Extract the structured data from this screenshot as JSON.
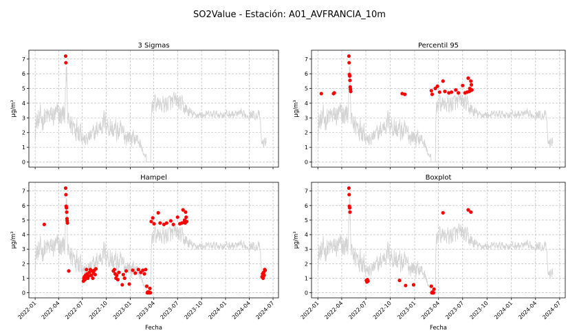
{
  "figure": {
    "suptitle": "SO2Value - Estación: A01_AVFRANCIA_10m"
  },
  "chart_data": [
    {
      "type": "line",
      "title": "3 Sigmas",
      "xlabel": "",
      "ylabel": "µg/m³",
      "ylim": [
        -0.35,
        7.6
      ],
      "yticks": [
        "0",
        "1",
        "2",
        "3",
        "4",
        "5",
        "6",
        "7"
      ],
      "xticks": [
        "2022-01",
        "2022-04",
        "2022-07",
        "2022-10",
        "2023-01",
        "2023-04",
        "2023-07",
        "2023-10",
        "2024-01",
        "2024-04",
        "2024-07"
      ],
      "show_xtick_labels": false,
      "grid": true,
      "series": [
        {
          "points": []
        }
      ],
      "outliers": [
        {
          "x": "2022-04-28",
          "y": 7.2
        },
        {
          "x": "2022-04-29",
          "y": 6.75
        }
      ]
    },
    {
      "type": "line",
      "title": "Percentil 95",
      "xlabel": "",
      "ylabel": "µg/m³",
      "ylim": [
        -0.35,
        7.6
      ],
      "yticks": [
        "0",
        "1",
        "2",
        "3",
        "4",
        "5",
        "6",
        "7"
      ],
      "xticks": [
        "2022-01",
        "2022-04",
        "2022-07",
        "2022-10",
        "2023-01",
        "2023-04",
        "2023-07",
        "2023-10",
        "2024-01",
        "2024-04",
        "2024-07"
      ],
      "show_xtick_labels": false,
      "grid": true,
      "series": [
        {
          "points": []
        }
      ],
      "outliers": [
        {
          "x": "2022-01-14",
          "y": 4.65
        },
        {
          "x": "2022-03-01",
          "y": 4.65
        },
        {
          "x": "2022-03-04",
          "y": 4.7
        },
        {
          "x": "2022-04-28",
          "y": 7.2
        },
        {
          "x": "2022-04-29",
          "y": 6.75
        },
        {
          "x": "2022-04-30",
          "y": 5.95
        },
        {
          "x": "2022-05-01",
          "y": 5.85
        },
        {
          "x": "2022-05-02",
          "y": 5.55
        },
        {
          "x": "2022-05-03",
          "y": 5.1
        },
        {
          "x": "2022-05-04",
          "y": 4.95
        },
        {
          "x": "2022-05-05",
          "y": 4.8
        },
        {
          "x": "2022-11-15",
          "y": 4.65
        },
        {
          "x": "2022-11-25",
          "y": 4.6
        },
        {
          "x": "2023-03-05",
          "y": 4.85
        },
        {
          "x": "2023-03-08",
          "y": 4.6
        },
        {
          "x": "2023-03-20",
          "y": 5.0
        },
        {
          "x": "2023-03-28",
          "y": 5.15
        },
        {
          "x": "2023-04-05",
          "y": 4.75
        },
        {
          "x": "2023-04-18",
          "y": 5.5
        },
        {
          "x": "2023-04-25",
          "y": 4.8
        },
        {
          "x": "2023-05-10",
          "y": 4.7
        },
        {
          "x": "2023-05-20",
          "y": 4.75
        },
        {
          "x": "2023-06-05",
          "y": 4.9
        },
        {
          "x": "2023-06-15",
          "y": 4.7
        },
        {
          "x": "2023-07-01",
          "y": 5.2
        },
        {
          "x": "2023-07-10",
          "y": 4.7
        },
        {
          "x": "2023-07-18",
          "y": 4.75
        },
        {
          "x": "2023-07-22",
          "y": 5.7
        },
        {
          "x": "2023-07-26",
          "y": 4.8
        },
        {
          "x": "2023-07-28",
          "y": 5.0
        },
        {
          "x": "2023-07-30",
          "y": 4.85
        },
        {
          "x": "2023-08-01",
          "y": 5.5
        },
        {
          "x": "2023-08-03",
          "y": 5.25
        },
        {
          "x": "2023-08-05",
          "y": 4.9
        }
      ]
    },
    {
      "type": "line",
      "title": "Hampel",
      "xlabel": "Fecha",
      "ylabel": "µg/m³",
      "ylim": [
        -0.35,
        7.6
      ],
      "yticks": [
        "0",
        "1",
        "2",
        "3",
        "4",
        "5",
        "6",
        "7"
      ],
      "xticks": [
        "2022-01",
        "2022-04",
        "2022-07",
        "2022-10",
        "2023-01",
        "2023-04",
        "2023-07",
        "2023-10",
        "2024-01",
        "2024-04",
        "2024-07"
      ],
      "show_xtick_labels": true,
      "grid": true,
      "series": [
        {
          "points": []
        }
      ],
      "outliers": [
        {
          "x": "2022-02-05",
          "y": 4.7
        },
        {
          "x": "2022-04-28",
          "y": 7.2
        },
        {
          "x": "2022-04-29",
          "y": 6.75
        },
        {
          "x": "2022-04-30",
          "y": 5.95
        },
        {
          "x": "2022-05-01",
          "y": 5.85
        },
        {
          "x": "2022-05-02",
          "y": 5.55
        },
        {
          "x": "2022-05-03",
          "y": 5.1
        },
        {
          "x": "2022-05-04",
          "y": 4.95
        },
        {
          "x": "2022-05-05",
          "y": 4.8
        },
        {
          "x": "2022-05-10",
          "y": 1.5
        },
        {
          "x": "2022-07-05",
          "y": 0.8
        },
        {
          "x": "2022-07-07",
          "y": 1.0
        },
        {
          "x": "2022-07-09",
          "y": 1.1
        },
        {
          "x": "2022-07-11",
          "y": 0.9
        },
        {
          "x": "2022-07-13",
          "y": 1.2
        },
        {
          "x": "2022-07-15",
          "y": 1.05
        },
        {
          "x": "2022-07-17",
          "y": 1.6
        },
        {
          "x": "2022-07-19",
          "y": 1.3
        },
        {
          "x": "2022-07-22",
          "y": 1.0
        },
        {
          "x": "2022-07-25",
          "y": 1.15
        },
        {
          "x": "2022-07-28",
          "y": 1.4
        },
        {
          "x": "2022-08-01",
          "y": 1.6
        },
        {
          "x": "2022-08-04",
          "y": 1.2
        },
        {
          "x": "2022-08-07",
          "y": 1.5
        },
        {
          "x": "2022-08-10",
          "y": 1.0
        },
        {
          "x": "2022-08-13",
          "y": 1.35
        },
        {
          "x": "2022-08-16",
          "y": 1.55
        },
        {
          "x": "2022-08-19",
          "y": 1.25
        },
        {
          "x": "2022-08-22",
          "y": 1.65
        },
        {
          "x": "2022-10-28",
          "y": 1.5
        },
        {
          "x": "2022-11-01",
          "y": 1.6
        },
        {
          "x": "2022-11-04",
          "y": 1.3
        },
        {
          "x": "2022-11-07",
          "y": 1.0
        },
        {
          "x": "2022-11-10",
          "y": 1.2
        },
        {
          "x": "2022-11-14",
          "y": 0.9
        },
        {
          "x": "2022-11-18",
          "y": 1.4
        },
        {
          "x": "2022-12-01",
          "y": 0.55
        },
        {
          "x": "2022-12-05",
          "y": 1.25
        },
        {
          "x": "2022-12-10",
          "y": 1.0
        },
        {
          "x": "2022-12-16",
          "y": 1.5
        },
        {
          "x": "2022-12-28",
          "y": 0.6
        },
        {
          "x": "2023-01-10",
          "y": 1.55
        },
        {
          "x": "2023-01-20",
          "y": 1.35
        },
        {
          "x": "2023-02-01",
          "y": 1.6
        },
        {
          "x": "2023-02-10",
          "y": 1.4
        },
        {
          "x": "2023-02-18",
          "y": 1.55
        },
        {
          "x": "2023-02-24",
          "y": 1.3
        },
        {
          "x": "2023-03-01",
          "y": 1.6
        },
        {
          "x": "2023-03-05",
          "y": 0.45
        },
        {
          "x": "2023-03-07",
          "y": 0.0
        },
        {
          "x": "2023-03-09",
          "y": 0.05
        },
        {
          "x": "2023-03-11",
          "y": 0.0
        },
        {
          "x": "2023-03-13",
          "y": 0.05
        },
        {
          "x": "2023-03-15",
          "y": 0.0
        },
        {
          "x": "2023-03-17",
          "y": 0.3
        },
        {
          "x": "2023-03-19",
          "y": 0.0
        },
        {
          "x": "2023-03-22",
          "y": 4.9
        },
        {
          "x": "2023-03-28",
          "y": 5.15
        },
        {
          "x": "2023-04-02",
          "y": 4.75
        },
        {
          "x": "2023-04-18",
          "y": 5.5
        },
        {
          "x": "2023-04-25",
          "y": 4.8
        },
        {
          "x": "2023-05-10",
          "y": 4.7
        },
        {
          "x": "2023-05-20",
          "y": 4.8
        },
        {
          "x": "2023-06-05",
          "y": 4.95
        },
        {
          "x": "2023-06-15",
          "y": 4.7
        },
        {
          "x": "2023-07-01",
          "y": 5.2
        },
        {
          "x": "2023-07-10",
          "y": 4.75
        },
        {
          "x": "2023-07-18",
          "y": 4.8
        },
        {
          "x": "2023-07-22",
          "y": 5.7
        },
        {
          "x": "2023-07-26",
          "y": 4.85
        },
        {
          "x": "2023-07-28",
          "y": 5.0
        },
        {
          "x": "2023-07-30",
          "y": 4.8
        },
        {
          "x": "2023-08-01",
          "y": 5.55
        },
        {
          "x": "2023-08-03",
          "y": 5.2
        },
        {
          "x": "2023-08-05",
          "y": 4.9
        },
        {
          "x": "2024-05-20",
          "y": 1.1
        },
        {
          "x": "2024-05-22",
          "y": 1.3
        },
        {
          "x": "2024-05-24",
          "y": 1.0
        },
        {
          "x": "2024-05-26",
          "y": 1.4
        },
        {
          "x": "2024-05-28",
          "y": 1.2
        },
        {
          "x": "2024-05-30",
          "y": 1.6
        },
        {
          "x": "2024-06-01",
          "y": 1.55
        }
      ]
    },
    {
      "type": "line",
      "title": "Boxplot",
      "xlabel": "Fecha",
      "ylabel": "µg/m³",
      "ylim": [
        -0.35,
        7.6
      ],
      "yticks": [
        "0",
        "1",
        "2",
        "3",
        "4",
        "5",
        "6",
        "7"
      ],
      "xticks": [
        "2022-01",
        "2022-04",
        "2022-07",
        "2022-10",
        "2023-01",
        "2023-04",
        "2023-07",
        "2023-10",
        "2024-01",
        "2024-04",
        "2024-07"
      ],
      "show_xtick_labels": true,
      "grid": true,
      "series": [
        {
          "points": []
        }
      ],
      "outliers": [
        {
          "x": "2022-04-28",
          "y": 7.2
        },
        {
          "x": "2022-04-29",
          "y": 6.75
        },
        {
          "x": "2022-04-30",
          "y": 5.95
        },
        {
          "x": "2022-05-01",
          "y": 5.85
        },
        {
          "x": "2022-05-02",
          "y": 5.55
        },
        {
          "x": "2022-07-03",
          "y": 0.85
        },
        {
          "x": "2022-07-05",
          "y": 0.75
        },
        {
          "x": "2022-07-07",
          "y": 0.9
        },
        {
          "x": "2022-07-09",
          "y": 0.8
        },
        {
          "x": "2022-11-05",
          "y": 0.85
        },
        {
          "x": "2022-11-28",
          "y": 0.5
        },
        {
          "x": "2022-12-28",
          "y": 0.55
        },
        {
          "x": "2023-03-05",
          "y": 0.45
        },
        {
          "x": "2023-03-07",
          "y": 0.0
        },
        {
          "x": "2023-03-09",
          "y": 0.05
        },
        {
          "x": "2023-03-11",
          "y": 0.0
        },
        {
          "x": "2023-03-13",
          "y": 0.0
        },
        {
          "x": "2023-03-15",
          "y": 0.25
        },
        {
          "x": "2023-04-18",
          "y": 5.5
        },
        {
          "x": "2023-07-22",
          "y": 5.7
        },
        {
          "x": "2023-08-01",
          "y": 5.55
        }
      ]
    }
  ]
}
